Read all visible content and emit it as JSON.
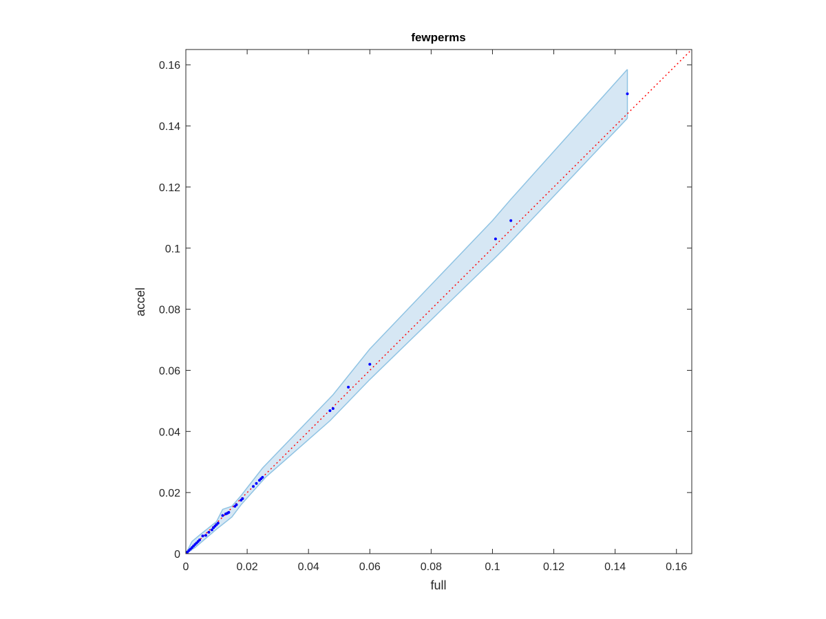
{
  "chart_data": {
    "type": "scatter",
    "title": "fewperms",
    "x_label": "full",
    "y_label": "accel",
    "xlim": [
      0,
      0.165
    ],
    "ylim": [
      0,
      0.165
    ],
    "xticks": [
      0,
      0.02,
      0.04,
      0.06,
      0.08,
      0.1,
      0.12,
      0.14,
      0.16
    ],
    "yticks": [
      0,
      0.02,
      0.04,
      0.06,
      0.08,
      0.1,
      0.12,
      0.14,
      0.16
    ],
    "series": [
      {
        "color": "#0000ff",
        "x": [
          0.0005,
          0.001,
          0.0015,
          0.002,
          0.0025,
          0.003,
          0.0035,
          0.004,
          0.0045,
          0.0055,
          0.0065,
          0.0075,
          0.0085,
          0.009,
          0.0095,
          0.01,
          0.0105,
          0.012,
          0.013,
          0.0135,
          0.014,
          0.016,
          0.0165,
          0.018,
          0.0185,
          0.022,
          0.023,
          0.024,
          0.0245,
          0.025,
          0.047,
          0.048,
          0.053,
          0.06,
          0.101,
          0.106,
          0.144
        ],
        "values": [
          0.0005,
          0.001,
          0.0015,
          0.002,
          0.0025,
          0.003,
          0.0035,
          0.004,
          0.0045,
          0.0058,
          0.006,
          0.007,
          0.0078,
          0.0085,
          0.009,
          0.0095,
          0.01,
          0.0125,
          0.013,
          0.0132,
          0.0135,
          0.0155,
          0.016,
          0.0175,
          0.018,
          0.022,
          0.023,
          0.024,
          0.0245,
          0.025,
          0.0468,
          0.0475,
          0.0545,
          0.062,
          0.103,
          0.109,
          0.1505
        ]
      }
    ],
    "band": {
      "color": "#d6e7f4",
      "edge_color": "#8fc3e3",
      "upper": {
        "x": [
          0,
          0.002,
          0.005,
          0.01,
          0.012,
          0.015,
          0.018,
          0.025,
          0.048,
          0.06,
          0.1,
          0.106,
          0.144
        ],
        "values": [
          0,
          0.004,
          0.0065,
          0.0105,
          0.0145,
          0.0155,
          0.019,
          0.028,
          0.052,
          0.067,
          0.109,
          0.116,
          0.1585
        ]
      },
      "lower": {
        "x": [
          0,
          0.003,
          0.01,
          0.015,
          0.018,
          0.026,
          0.047,
          0.06,
          0.1,
          0.104,
          0.144
        ],
        "values": [
          0,
          0.002,
          0.008,
          0.012,
          0.016,
          0.025,
          0.0435,
          0.057,
          0.096,
          0.1,
          0.1425
        ]
      }
    },
    "reference_line": {
      "color": "#ff0000",
      "x": [
        0,
        0.165
      ],
      "values": [
        0,
        0.165
      ]
    }
  }
}
